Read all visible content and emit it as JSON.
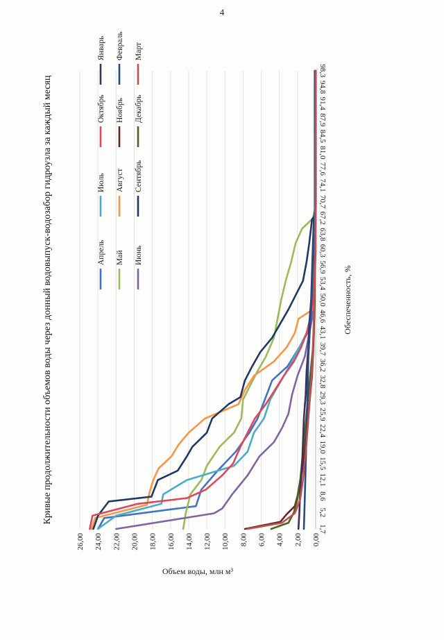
{
  "page": {
    "number": "4"
  },
  "chart_data": {
    "type": "line",
    "title": "Кривые продолжительности объемов воды через донный водовыпуск-водозабор гидроузла за каждый месяц",
    "xlabel": "Обеспеченность, %",
    "ylabel": "Объем воды, млн м³",
    "ylim": [
      0,
      26
    ],
    "y_ticks": [
      "0,00",
      "2,00",
      "4,00",
      "6,00",
      "8,00",
      "10,00",
      "12,00",
      "14,00",
      "16,00",
      "18,00",
      "20,00",
      "22,00",
      "24,00",
      "26,00"
    ],
    "x_ticks": [
      "1,7",
      "5,2",
      "8,6",
      "12,1",
      "15,5",
      "19,0",
      "22,4",
      "25,9",
      "29,3",
      "32,8",
      "36,2",
      "39,7",
      "43,1",
      "46,6",
      "50,0",
      "53,4",
      "56,9",
      "60,3",
      "63,8",
      "67,2",
      "70,7",
      "74,1",
      "77,6",
      "81,0",
      "84,5",
      "87,9",
      "91,4",
      "94,8",
      "98,3"
    ],
    "legend_position": "top-right",
    "grid": "horizontal",
    "series": [
      {
        "name": "Апрель",
        "color": "#4472c4",
        "points": [
          [
            1.7,
            24.0
          ],
          [
            4.0,
            23.3
          ],
          [
            6.5,
            13.2
          ],
          [
            10,
            12.6
          ],
          [
            14,
            10.8
          ],
          [
            18,
            8.8
          ],
          [
            22,
            7.3
          ],
          [
            25,
            6.4
          ],
          [
            29,
            5.6
          ],
          [
            33,
            4.8
          ],
          [
            36,
            3.1
          ],
          [
            40,
            1.8
          ],
          [
            43,
            0.9
          ],
          [
            46,
            0.5
          ],
          [
            50,
            0.2
          ],
          [
            55,
            0.1
          ],
          [
            60,
            0.05
          ],
          [
            67,
            0.0
          ],
          [
            98.3,
            0.0
          ]
        ]
      },
      {
        "name": "Май",
        "color": "#9bbb59",
        "points": [
          [
            1.7,
            14.6
          ],
          [
            5.2,
            14.3
          ],
          [
            9,
            13.8
          ],
          [
            12,
            12.6
          ],
          [
            15,
            12.0
          ],
          [
            19,
            10.6
          ],
          [
            22,
            9.0
          ],
          [
            25,
            8.2
          ],
          [
            29,
            8.0
          ],
          [
            32,
            7.2
          ],
          [
            35,
            6.4
          ],
          [
            38,
            5.5
          ],
          [
            42,
            4.6
          ],
          [
            46,
            4.2
          ],
          [
            50,
            3.8
          ],
          [
            54,
            3.3
          ],
          [
            58,
            2.7
          ],
          [
            62,
            2.2
          ],
          [
            65,
            1.5
          ],
          [
            67.2,
            0.3
          ],
          [
            70,
            0.0
          ],
          [
            98.3,
            0.0
          ]
        ]
      },
      {
        "name": "Июнь",
        "color": "#8064a2",
        "points": [
          [
            1.7,
            22.0
          ],
          [
            5.0,
            11.2
          ],
          [
            6.0,
            10.3
          ],
          [
            9,
            9.2
          ],
          [
            13,
            7.5
          ],
          [
            17,
            6.2
          ],
          [
            20,
            4.6
          ],
          [
            23,
            3.7
          ],
          [
            26,
            3.0
          ],
          [
            30,
            2.6
          ],
          [
            34,
            2.0
          ],
          [
            38,
            1.2
          ],
          [
            42,
            0.8
          ],
          [
            46,
            0.4
          ],
          [
            50,
            0.2
          ],
          [
            56,
            0.1
          ],
          [
            63,
            0.05
          ],
          [
            67,
            0.0
          ],
          [
            98.3,
            0.0
          ]
        ]
      },
      {
        "name": "Июль",
        "color": "#4bacc6",
        "points": [
          [
            1.7,
            24.0
          ],
          [
            4.5,
            22.0
          ],
          [
            7,
            17.0
          ],
          [
            9,
            16.8
          ],
          [
            12,
            14.2
          ],
          [
            15,
            9.0
          ],
          [
            18,
            7.5
          ],
          [
            22,
            6.8
          ],
          [
            25,
            5.7
          ],
          [
            29,
            5.0
          ],
          [
            33,
            3.8
          ],
          [
            36,
            2.9
          ],
          [
            40,
            1.8
          ],
          [
            43,
            1.0
          ],
          [
            46,
            0.6
          ],
          [
            50,
            0.4
          ],
          [
            55,
            0.3
          ],
          [
            60,
            0.2
          ],
          [
            67,
            0.0
          ],
          [
            98.3,
            0.0
          ]
        ]
      },
      {
        "name": "Август",
        "color": "#f79646",
        "points": [
          [
            1.7,
            24.7
          ],
          [
            4.0,
            24.3
          ],
          [
            6.8,
            18.6
          ],
          [
            9.5,
            18.3
          ],
          [
            12,
            17.9
          ],
          [
            14.5,
            17.3
          ],
          [
            17,
            15.9
          ],
          [
            19.5,
            15.1
          ],
          [
            22,
            14.0
          ],
          [
            25,
            12.2
          ],
          [
            28,
            8.5
          ],
          [
            31,
            7.8
          ],
          [
            34,
            6.8
          ],
          [
            37,
            4.6
          ],
          [
            40,
            3.2
          ],
          [
            43,
            2.3
          ],
          [
            46,
            1.9
          ],
          [
            48,
            0.3
          ],
          [
            50,
            0.1
          ],
          [
            98.3,
            0.0
          ]
        ]
      },
      {
        "name": "Сентябрь",
        "color": "#1f3864",
        "points": [
          [
            1.7,
            24.5
          ],
          [
            4.5,
            24.0
          ],
          [
            7.5,
            22.8
          ],
          [
            8.5,
            18.1
          ],
          [
            12,
            17.4
          ],
          [
            14,
            15.2
          ],
          [
            17,
            14.2
          ],
          [
            19,
            13.6
          ],
          [
            22,
            12.0
          ],
          [
            25,
            11.4
          ],
          [
            28,
            9.6
          ],
          [
            29.5,
            8.3
          ],
          [
            33,
            7.8
          ],
          [
            36,
            7.0
          ],
          [
            39,
            6.1
          ],
          [
            42,
            4.8
          ],
          [
            45,
            3.9
          ],
          [
            48,
            3.0
          ],
          [
            51,
            2.2
          ],
          [
            54,
            1.4
          ],
          [
            58,
            1.0
          ],
          [
            62,
            0.7
          ],
          [
            67,
            0.4
          ],
          [
            68,
            0.0
          ],
          [
            98.3,
            0.0
          ]
        ]
      },
      {
        "name": "Октябрь",
        "color": "#e0475e",
        "points": [
          [
            1.7,
            24.9
          ],
          [
            4.5,
            24.6
          ],
          [
            7,
            19.6
          ],
          [
            8.2,
            14.2
          ],
          [
            10,
            12.1
          ],
          [
            13,
            10.3
          ],
          [
            15.5,
            9.1
          ],
          [
            19,
            8.3
          ],
          [
            22,
            7.5
          ],
          [
            25,
            6.7
          ],
          [
            28,
            5.5
          ],
          [
            31,
            4.5
          ],
          [
            34,
            3.5
          ],
          [
            37,
            2.4
          ],
          [
            40,
            1.6
          ],
          [
            43,
            1.0
          ],
          [
            46,
            0.6
          ],
          [
            50,
            0.3
          ],
          [
            55,
            0.1
          ],
          [
            60,
            0.0
          ],
          [
            98.3,
            0.0
          ]
        ]
      },
      {
        "name": "Ноябрь",
        "color": "#632523",
        "points": [
          [
            1.7,
            7.8
          ],
          [
            3.2,
            3.9
          ],
          [
            4.8,
            3.2
          ],
          [
            6.5,
            2.3
          ],
          [
            8.6,
            2.0
          ],
          [
            12,
            1.7
          ],
          [
            15,
            1.4
          ],
          [
            19,
            1.2
          ],
          [
            22,
            1.0
          ],
          [
            26,
            0.8
          ],
          [
            30,
            0.6
          ],
          [
            34,
            0.4
          ],
          [
            38,
            0.3
          ],
          [
            43,
            0.2
          ],
          [
            50,
            0.1
          ],
          [
            98.3,
            0.0
          ]
        ]
      },
      {
        "name": "Декабрь",
        "color": "#4f6228",
        "points": [
          [
            1.7,
            4.9
          ],
          [
            3.0,
            3.0
          ],
          [
            5.2,
            2.4
          ],
          [
            8,
            2.0
          ],
          [
            12,
            1.7
          ],
          [
            16,
            1.5
          ],
          [
            20,
            1.3
          ],
          [
            24,
            1.1
          ],
          [
            28,
            0.9
          ],
          [
            32,
            0.7
          ],
          [
            36,
            0.5
          ],
          [
            40,
            0.3
          ],
          [
            45,
            0.2
          ],
          [
            50,
            0.1
          ],
          [
            98.3,
            0.0
          ]
        ]
      },
      {
        "name": "Январь",
        "color": "#403152",
        "points": [
          [
            1.7,
            1.9
          ],
          [
            5,
            1.8
          ],
          [
            10,
            1.7
          ],
          [
            15,
            1.5
          ],
          [
            20,
            1.4
          ],
          [
            25,
            1.3
          ],
          [
            30,
            1.1
          ],
          [
            35,
            1.0
          ],
          [
            40,
            0.8
          ],
          [
            45,
            0.7
          ],
          [
            50,
            0.5
          ],
          [
            56,
            0.4
          ],
          [
            62,
            0.3
          ],
          [
            67,
            0.2
          ],
          [
            70,
            0.0
          ],
          [
            98.3,
            0.0
          ]
        ]
      },
      {
        "name": "Февраль",
        "color": "#254b8c",
        "points": [
          [
            1.7,
            1.3
          ],
          [
            8,
            1.2
          ],
          [
            15,
            1.1
          ],
          [
            22,
            1.0
          ],
          [
            30,
            0.9
          ],
          [
            38,
            0.8
          ],
          [
            45,
            0.6
          ],
          [
            52,
            0.4
          ],
          [
            58,
            0.3
          ],
          [
            64,
            0.2
          ],
          [
            68,
            0.1
          ],
          [
            98.3,
            0.1
          ]
        ]
      },
      {
        "name": "Март",
        "color": "#c0504d",
        "points": [
          [
            1.7,
            7.5
          ],
          [
            3.0,
            3.7
          ],
          [
            5.0,
            2.3
          ],
          [
            8,
            1.7
          ],
          [
            12,
            1.4
          ],
          [
            16,
            1.2
          ],
          [
            20,
            1.0
          ],
          [
            25,
            0.8
          ],
          [
            30,
            0.6
          ],
          [
            35,
            0.4
          ],
          [
            40,
            0.3
          ],
          [
            46,
            0.2
          ],
          [
            55,
            0.1
          ],
          [
            62,
            0.05
          ],
          [
            98.3,
            0.0
          ]
        ]
      }
    ]
  }
}
